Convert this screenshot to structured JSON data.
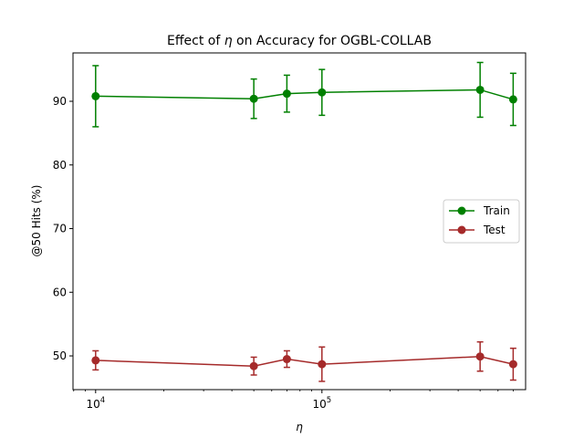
{
  "chart_data": {
    "type": "line",
    "title_prefix": "Effect of",
    "title_symbol": "η",
    "title_suffix": "on Accuracy for OGBL-COLLAB",
    "xlabel": "η",
    "ylabel": "@50 Hits (%)",
    "xscale": "log",
    "xlim": [
      7943,
      794328
    ],
    "ylim": [
      44.7,
      97.6
    ],
    "xticks_major": [
      {
        "value": 10000,
        "base": "10",
        "exp": "4"
      },
      {
        "value": 100000,
        "base": "10",
        "exp": "5"
      }
    ],
    "yticks": [
      {
        "value": 50,
        "label": "50"
      },
      {
        "value": 60,
        "label": "60"
      },
      {
        "value": 70,
        "label": "70"
      },
      {
        "value": 80,
        "label": "80"
      },
      {
        "value": 90,
        "label": "90"
      }
    ],
    "grid": false,
    "legend_position": "center-right",
    "series": [
      {
        "name": "Train",
        "color": "#008000",
        "x": [
          10000,
          50000,
          70000,
          100000,
          500000,
          700000
        ],
        "y": [
          90.8,
          90.4,
          91.2,
          91.4,
          91.8,
          90.3
        ],
        "err": [
          4.8,
          3.1,
          2.9,
          3.6,
          4.3,
          4.1
        ]
      },
      {
        "name": "Test",
        "color": "#a52a2a",
        "x": [
          10000,
          50000,
          70000,
          100000,
          500000,
          700000
        ],
        "y": [
          49.3,
          48.4,
          49.5,
          48.7,
          49.9,
          48.7
        ],
        "err": [
          1.5,
          1.4,
          1.3,
          2.7,
          2.3,
          2.5
        ]
      }
    ]
  }
}
